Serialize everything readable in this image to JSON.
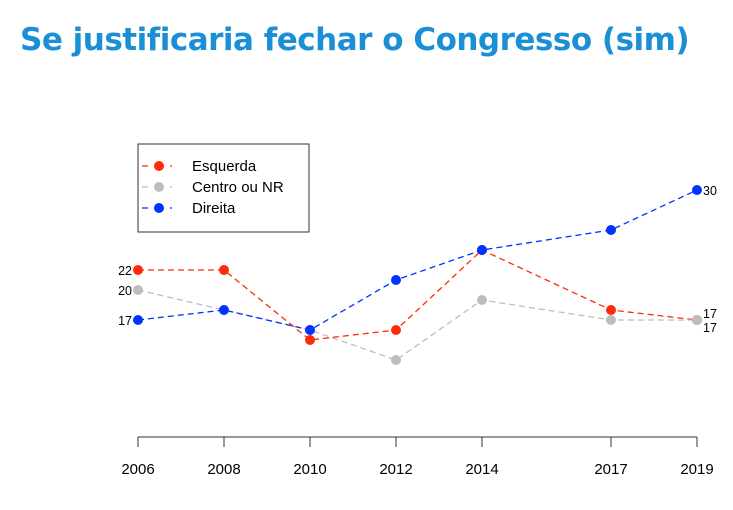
{
  "chart_data": {
    "type": "line",
    "title": "Se justificaria fechar o Congresso (sim)",
    "xlabel": "",
    "ylabel": "",
    "x": [
      2006,
      2008,
      2010,
      2012,
      2014,
      2017,
      2019
    ],
    "x_tick_labels": [
      "2006",
      "2008",
      "2010",
      "2012",
      "2014",
      "2017",
      "2019"
    ],
    "ylim": [
      8,
      33
    ],
    "grid": false,
    "legend_position": "top-left",
    "series": [
      {
        "name": "Esquerda",
        "color": "#ff2a0a",
        "values": [
          22,
          22,
          15,
          16,
          24,
          18,
          17
        ],
        "first_label": "22",
        "last_label": "17"
      },
      {
        "name": "Centro ou NR",
        "color": "#bdbdbd",
        "values": [
          20,
          18,
          16,
          13,
          19,
          17,
          17
        ],
        "first_label": "20",
        "last_label": "17"
      },
      {
        "name": "Direita",
        "color": "#0033ff",
        "values": [
          17,
          18,
          16,
          21,
          24,
          26,
          30
        ],
        "first_label": "17",
        "last_label": "30"
      }
    ]
  }
}
